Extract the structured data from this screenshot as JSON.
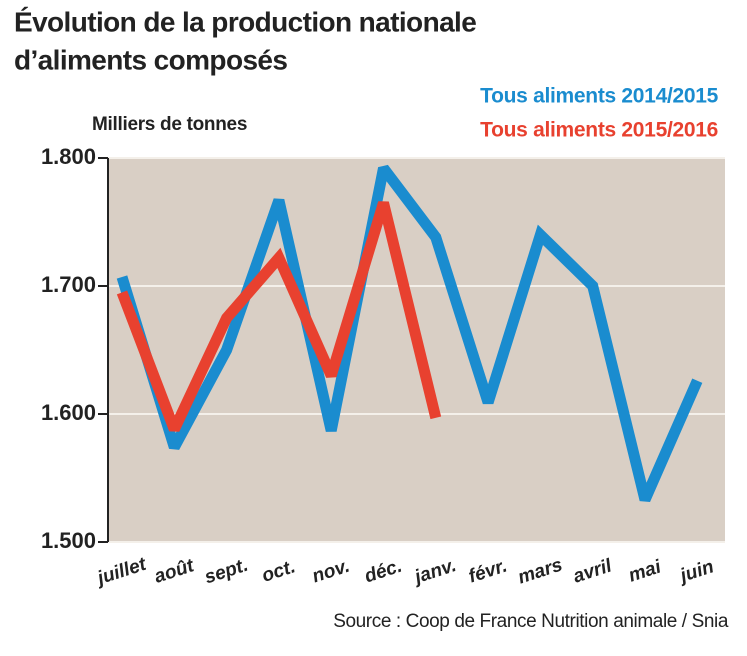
{
  "chart_data": {
    "type": "line",
    "title_lines": [
      "Évolution de la production nationale",
      "d’aliments composés"
    ],
    "y_label": "Milliers de tonnes",
    "source": "Source : Coop de France Nutrition animale / Snia",
    "categories": [
      "juillet",
      "août",
      "sept.",
      "oct.",
      "nov.",
      "déc.",
      "janv.",
      "févr.",
      "mars",
      "avril",
      "mai",
      "juin"
    ],
    "series": [
      {
        "name": "Tous aliments 2014/2015",
        "color": "#1a8ccf",
        "values": [
          1707,
          1574,
          1650,
          1767,
          1587,
          1792,
          1738,
          1609,
          1740,
          1700,
          1533,
          1626
        ]
      },
      {
        "name": "Tous aliments 2015/2016",
        "color": "#e8412f",
        "values": [
          1695,
          1588,
          1675,
          1722,
          1630,
          1765,
          1597,
          null,
          null,
          null,
          null,
          null
        ]
      }
    ],
    "ylim": [
      1500,
      1800
    ],
    "yticks": [
      {
        "value": 1500,
        "label": "1.500"
      },
      {
        "value": 1600,
        "label": "1.600"
      },
      {
        "value": 1700,
        "label": "1.700"
      },
      {
        "value": 1800,
        "label": "1.800"
      }
    ],
    "grid": true
  }
}
